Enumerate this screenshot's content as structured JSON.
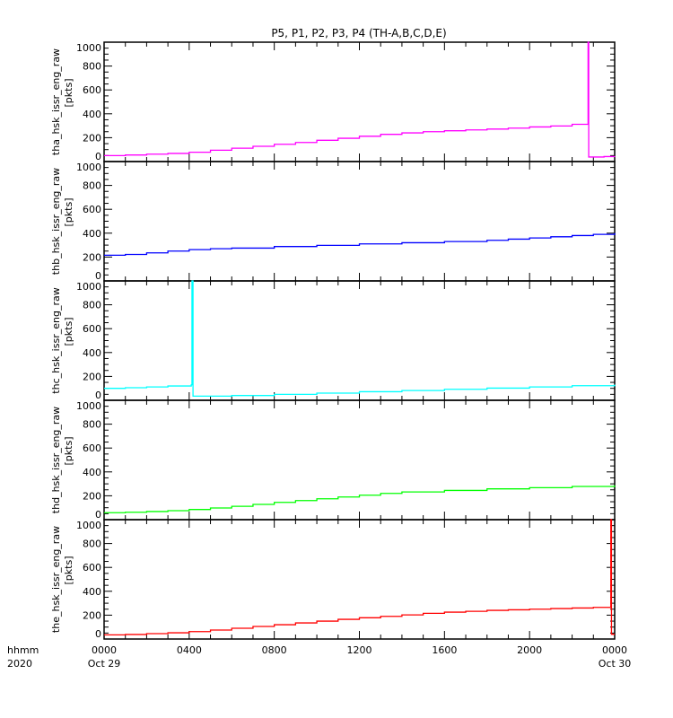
{
  "chart_data": {
    "type": "line",
    "title": "P5, P1, P2, P3, P4 (TH-A,B,C,D,E)",
    "x_unit": "hours since 2020-10-29 00:00",
    "xlim": [
      0,
      24
    ],
    "xticks": [
      {
        "value": 0,
        "label": "0000",
        "sublabel": "Oct 29"
      },
      {
        "value": 4,
        "label": "0400",
        "sublabel": ""
      },
      {
        "value": 8,
        "label": "0800",
        "sublabel": ""
      },
      {
        "value": 12,
        "label": "1200",
        "sublabel": ""
      },
      {
        "value": 16,
        "label": "1600",
        "sublabel": ""
      },
      {
        "value": 20,
        "label": "2000",
        "sublabel": ""
      },
      {
        "value": 24,
        "label": "0000",
        "sublabel": "Oct 30"
      }
    ],
    "x_corner_label": "hhmm",
    "x_corner_sublabel": "2020",
    "ylim": [
      0,
      1000
    ],
    "yticks": [
      0,
      200,
      400,
      600,
      800,
      1000
    ],
    "panels": [
      {
        "ylabel": "tha_hsk_issr_eng_raw",
        "unit": "[pkts]",
        "color": "#ff00ff",
        "x": [
          0,
          1,
          2,
          3,
          4,
          5,
          6,
          7,
          8,
          9,
          10,
          11,
          12,
          13,
          14,
          15,
          16,
          17,
          18,
          19,
          20,
          21,
          22,
          22.75,
          22.78,
          23.5,
          24
        ],
        "y": [
          50,
          55,
          62,
          68,
          78,
          95,
          112,
          128,
          145,
          160,
          178,
          195,
          212,
          228,
          240,
          250,
          258,
          265,
          272,
          280,
          290,
          298,
          312,
          1000,
          38,
          42,
          45
        ]
      },
      {
        "ylabel": "thb_hsk_issr_eng_raw",
        "unit": "[pkts]",
        "color": "#0000ff",
        "x": [
          0,
          1,
          2,
          3,
          4,
          5,
          6,
          8,
          10,
          12,
          14,
          16,
          18,
          19,
          20,
          21,
          22,
          23,
          24
        ],
        "y": [
          215,
          222,
          235,
          250,
          262,
          270,
          275,
          288,
          298,
          310,
          320,
          330,
          340,
          350,
          360,
          370,
          380,
          390,
          400
        ]
      },
      {
        "ylabel": "thc_hsk_issr_eng_raw",
        "unit": "[pkts]",
        "color": "#00ffff",
        "x": [
          0,
          1,
          2,
          3,
          4.1,
          4.13,
          4.18,
          6,
          8,
          10,
          12,
          14,
          16,
          18,
          20,
          22,
          24
        ],
        "y": [
          100,
          105,
          112,
          120,
          130,
          1000,
          35,
          40,
          50,
          60,
          72,
          82,
          92,
          102,
          112,
          122,
          132
        ]
      },
      {
        "ylabel": "thd_hsk_issr_eng_raw",
        "unit": "[pkts]",
        "color": "#00ff00",
        "x": [
          0,
          1,
          2,
          3,
          4,
          5,
          6,
          7,
          8,
          9,
          10,
          11,
          12,
          13,
          14,
          16,
          18,
          20,
          22,
          24
        ],
        "y": [
          58,
          62,
          68,
          75,
          85,
          98,
          112,
          128,
          145,
          160,
          175,
          190,
          205,
          220,
          232,
          245,
          258,
          268,
          278,
          288
        ]
      },
      {
        "ylabel": "the_hsk_issr_eng_raw",
        "unit": "[pkts]",
        "color": "#ff0000",
        "x": [
          0,
          1,
          2,
          3,
          4,
          5,
          6,
          7,
          8,
          9,
          10,
          11,
          12,
          13,
          14,
          15,
          16,
          17,
          18,
          19,
          20,
          21,
          22,
          23,
          23.82,
          23.85,
          24
        ],
        "y": [
          35,
          38,
          45,
          52,
          62,
          75,
          90,
          105,
          120,
          135,
          150,
          165,
          178,
          190,
          202,
          215,
          225,
          232,
          240,
          245,
          250,
          255,
          260,
          265,
          1000,
          40,
          40
        ]
      }
    ]
  }
}
